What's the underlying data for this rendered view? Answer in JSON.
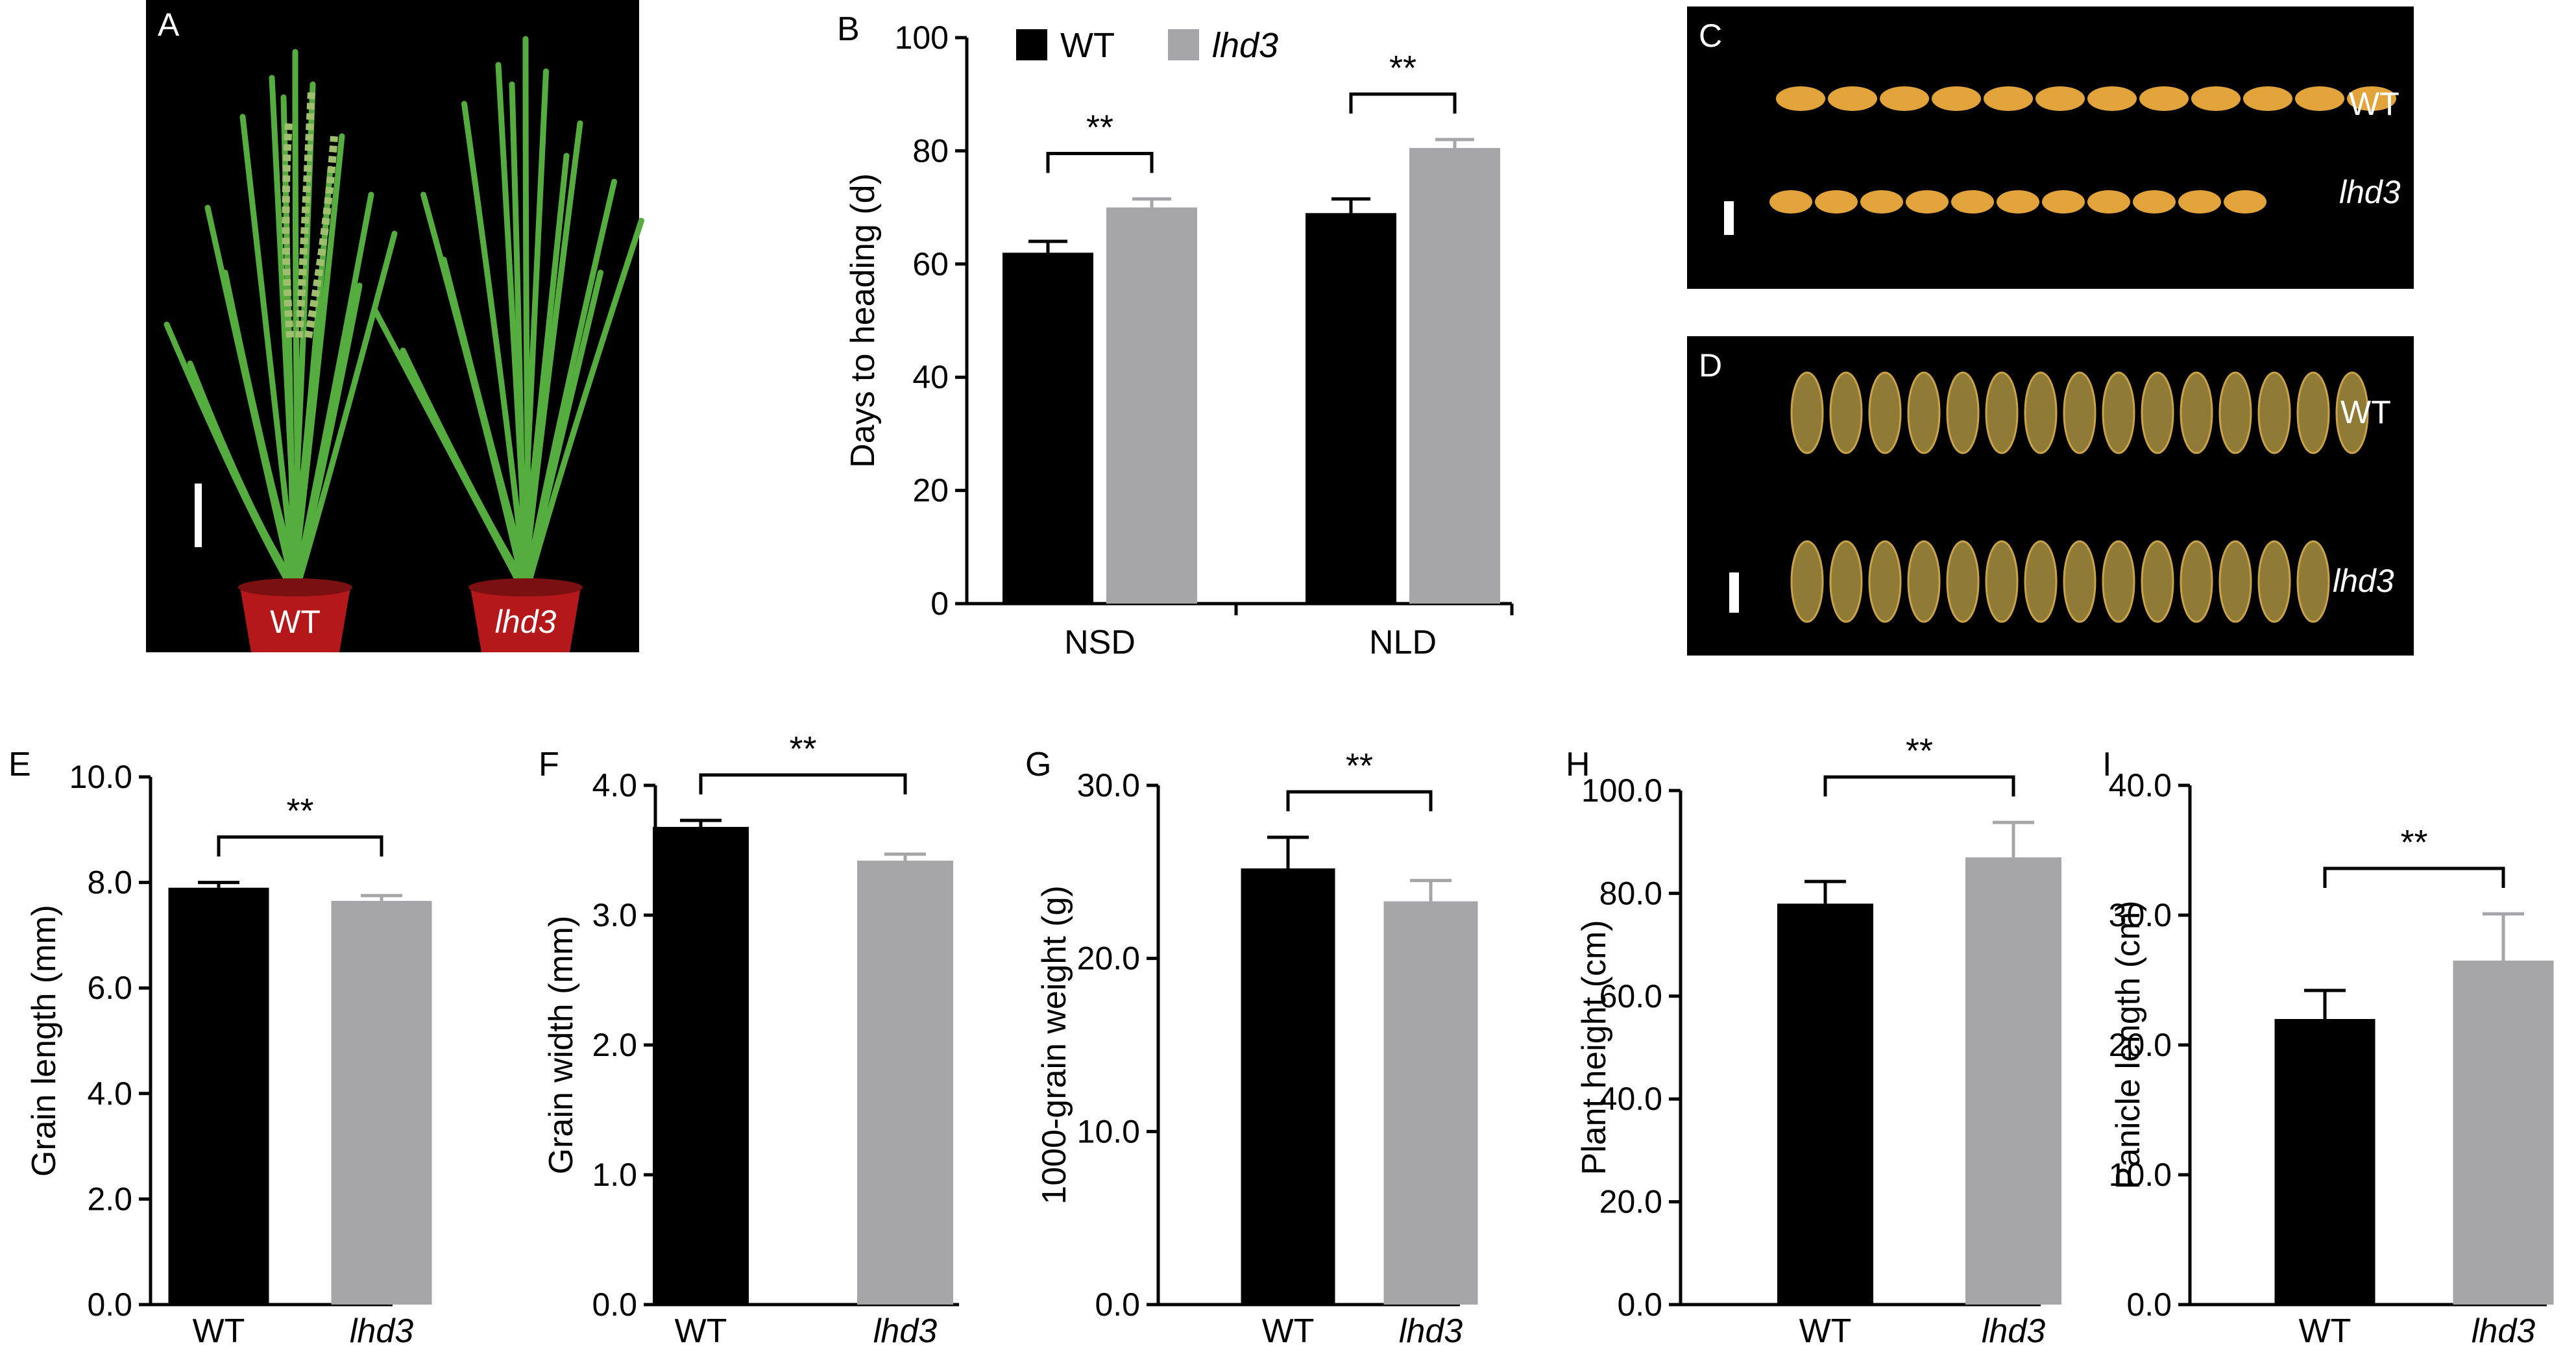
{
  "colors": {
    "wt": "#000000",
    "mutant": "#a6a6a8",
    "photo_bg": "#000000",
    "leaf": "#55ad3f",
    "pot": "#b5181a",
    "grain_gold": "#e2a43a",
    "grain_olive": "#8f7a36",
    "photo_text": "#ffffff"
  },
  "photos": [
    {
      "panel": "A",
      "icon": "rice-plant-photo",
      "labels": [
        "WT",
        "lhd3"
      ]
    },
    {
      "panel": "C",
      "icon": "grain-length-photo",
      "labels": [
        "WT",
        "lhd3"
      ]
    },
    {
      "panel": "D",
      "icon": "grain-width-photo",
      "labels": [
        "WT",
        "lhd3"
      ]
    }
  ],
  "chart_data": [
    {
      "panel": "B",
      "type": "bar",
      "ylabel": "Days to heading (d)",
      "categories": [
        "NSD",
        "NLD"
      ],
      "series": [
        {
          "name": "WT",
          "values": [
            62,
            69
          ],
          "errors": [
            2,
            2.5
          ]
        },
        {
          "name": "lhd3",
          "values": [
            70,
            80.5
          ],
          "errors": [
            1.5,
            1.5
          ]
        }
      ],
      "ylim": [
        0,
        100
      ],
      "ticks": [
        "0",
        "20",
        "40",
        "60",
        "80",
        "100"
      ],
      "significance": [
        "**",
        "**"
      ],
      "legend": "top-left"
    },
    {
      "panel": "E",
      "type": "bar",
      "ylabel": "Grain length (mm)",
      "categories": [
        "WT",
        "lhd3"
      ],
      "values": [
        7.9,
        7.65
      ],
      "errors": [
        0.1,
        0.1
      ],
      "ylim": [
        0,
        10
      ],
      "ticks": [
        "0.0",
        "2.0",
        "4.0",
        "6.0",
        "8.0",
        "10.0"
      ],
      "significance": "**"
    },
    {
      "panel": "F",
      "type": "bar",
      "ylabel": "Grain width (mm)",
      "categories": [
        "WT",
        "lhd3"
      ],
      "values": [
        3.68,
        3.42
      ],
      "errors": [
        0.05,
        0.05
      ],
      "ylim": [
        0,
        4
      ],
      "ticks": [
        "0.0",
        "1.0",
        "2.0",
        "3.0",
        "4.0"
      ],
      "significance": "**"
    },
    {
      "panel": "G",
      "type": "bar",
      "ylabel": "1000-grain weight (g)",
      "categories": [
        "WT",
        "lhd3"
      ],
      "values": [
        25.2,
        23.3
      ],
      "errors": [
        1.8,
        1.2
      ],
      "ylim": [
        0,
        30
      ],
      "ticks": [
        "0.0",
        "10.0",
        "20.0",
        "30.0"
      ],
      "significance": "**"
    },
    {
      "panel": "H",
      "type": "bar",
      "ylabel": "Plant height (cm)",
      "categories": [
        "WT",
        "lhd3"
      ],
      "values": [
        78,
        87
      ],
      "errors": [
        4.3,
        6.8
      ],
      "ylim": [
        0,
        100
      ],
      "ticks": [
        "0.0",
        "20.0",
        "40.0",
        "60.0",
        "80.0",
        "100.0"
      ],
      "significance": "**"
    },
    {
      "panel": "I",
      "type": "bar",
      "ylabel": "Panicle length (cm)",
      "categories": [
        "WT",
        "lhd3"
      ],
      "values": [
        22,
        26.5
      ],
      "errors": [
        2.2,
        3.6
      ],
      "ylim": [
        0,
        40
      ],
      "ticks": [
        "0.0",
        "10.0",
        "20.0",
        "30.0",
        "40.0"
      ],
      "significance": "**"
    }
  ]
}
